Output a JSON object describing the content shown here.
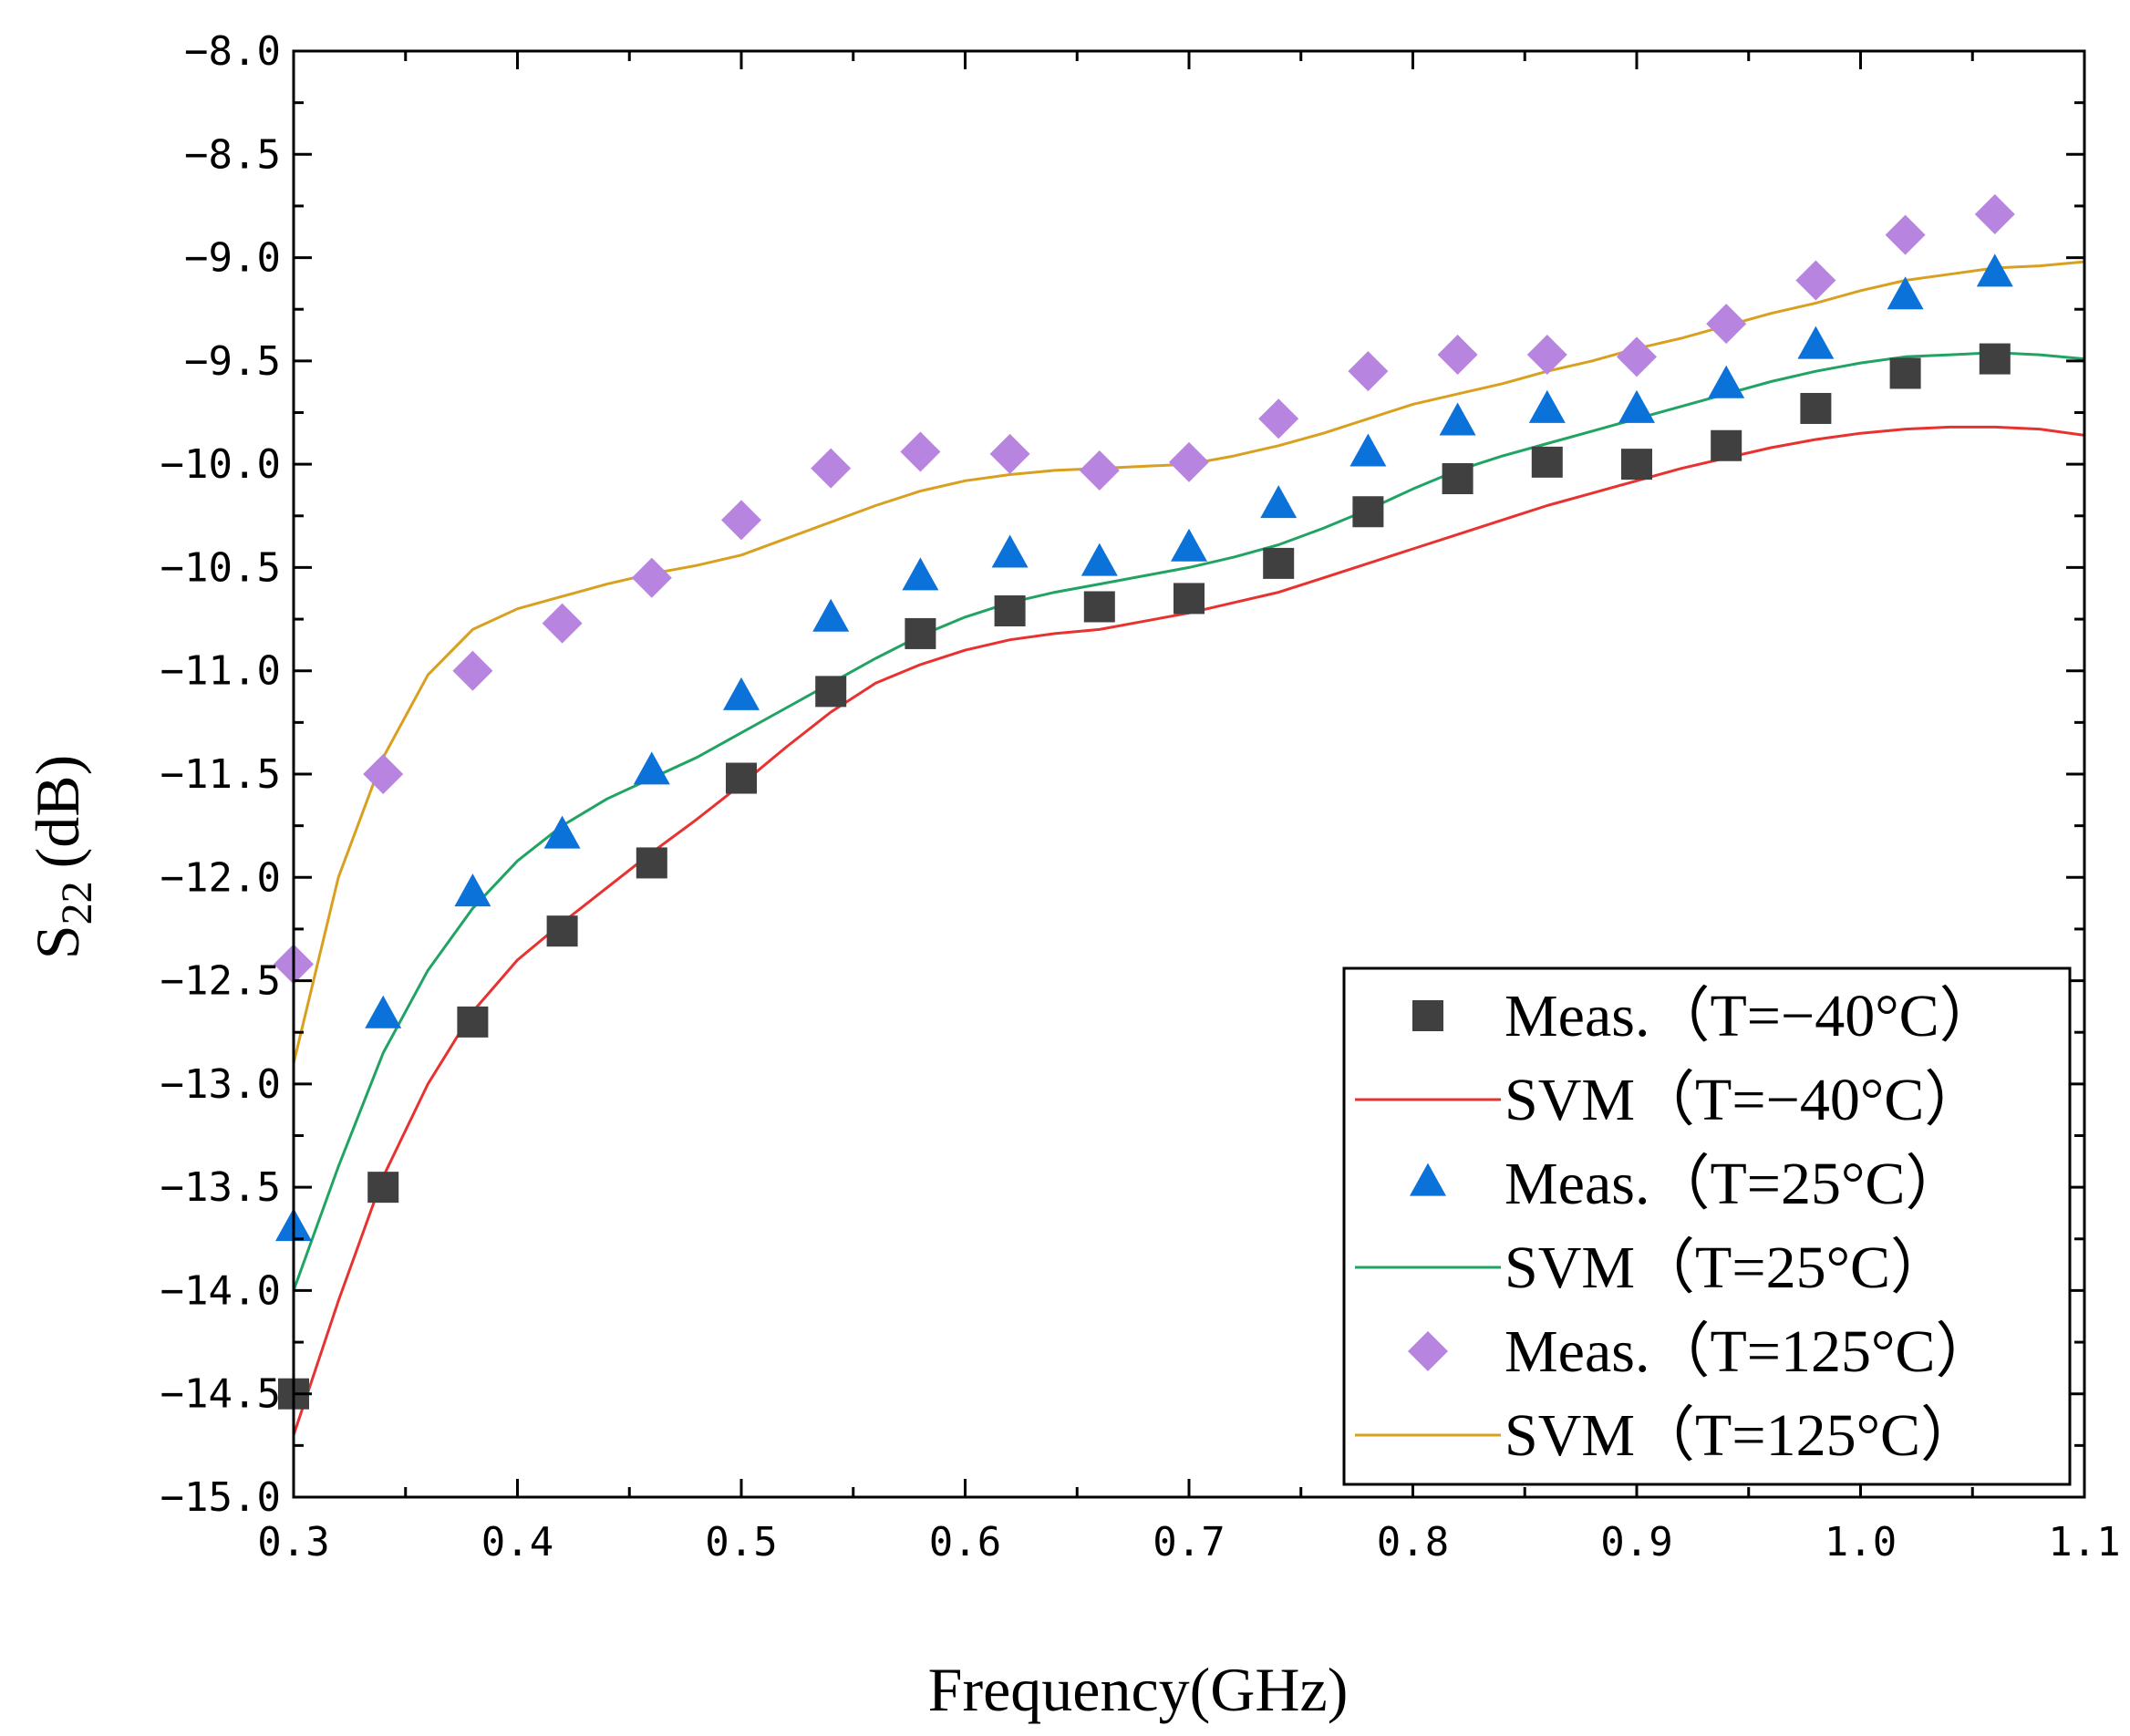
{
  "chart_data": {
    "type": "scatter",
    "title": "",
    "xlabel": "Frequency(GHz)",
    "ylabel": {
      "main": "S",
      "sub": "22",
      "unit": "(dB)"
    },
    "xlim": [
      0.3,
      1.1
    ],
    "ylim": [
      -15.0,
      -8.0
    ],
    "grid": false,
    "legend_position": "bottom-right",
    "x_ticks": [
      {
        "value": 0.3,
        "label": "0.3"
      },
      {
        "value": 0.4,
        "label": "0.4"
      },
      {
        "value": 0.5,
        "label": "0.5"
      },
      {
        "value": 0.6,
        "label": "0.6"
      },
      {
        "value": 0.7,
        "label": "0.7"
      },
      {
        "value": 0.8,
        "label": "0.8"
      },
      {
        "value": 0.9,
        "label": "0.9"
      },
      {
        "value": 1.0,
        "label": "1.0"
      },
      {
        "value": 1.1,
        "label": "1.1"
      }
    ],
    "y_ticks": [
      {
        "value": -8.0,
        "label": "−8.0"
      },
      {
        "value": -8.5,
        "label": "−8.5"
      },
      {
        "value": -9.0,
        "label": "−9.0"
      },
      {
        "value": -9.5,
        "label": "−9.5"
      },
      {
        "value": -10.0,
        "label": "−10.0"
      },
      {
        "value": -10.5,
        "label": "−10.5"
      },
      {
        "value": -11.0,
        "label": "−11.0"
      },
      {
        "value": -11.5,
        "label": "−11.5"
      },
      {
        "value": -12.0,
        "label": "−12.0"
      },
      {
        "value": -12.5,
        "label": "−12.5"
      },
      {
        "value": -13.0,
        "label": "−13.0"
      },
      {
        "value": -13.5,
        "label": "−13.5"
      },
      {
        "value": -14.0,
        "label": "−14.0"
      },
      {
        "value": -14.5,
        "label": "−14.5"
      },
      {
        "value": -15.0,
        "label": "−15.0"
      }
    ],
    "series": [
      {
        "name": "Meas.（T=−40°C）",
        "kind": "markers",
        "marker": "square",
        "color": "#404040",
        "x": [
          0.3,
          0.34,
          0.38,
          0.42,
          0.46,
          0.5,
          0.54,
          0.58,
          0.62,
          0.66,
          0.7,
          0.74,
          0.78,
          0.82,
          0.86,
          0.9,
          0.94,
          0.98,
          1.02,
          1.06
        ],
        "y": [
          -14.5,
          -13.5,
          -12.7,
          -12.26,
          -11.93,
          -11.52,
          -11.1,
          -10.82,
          -10.71,
          -10.69,
          -10.65,
          -10.48,
          -10.23,
          -10.07,
          -9.99,
          -10.0,
          -9.91,
          -9.73,
          -9.56,
          -9.49
        ]
      },
      {
        "name": "SVM（T=−40°C）",
        "kind": "line",
        "color": "#e8322f",
        "x": [
          0.3,
          0.32,
          0.34,
          0.36,
          0.38,
          0.4,
          0.42,
          0.44,
          0.46,
          0.48,
          0.5,
          0.52,
          0.54,
          0.56,
          0.58,
          0.6,
          0.62,
          0.64,
          0.66,
          0.68,
          0.7,
          0.72,
          0.74,
          0.76,
          0.78,
          0.8,
          0.82,
          0.84,
          0.86,
          0.88,
          0.9,
          0.92,
          0.94,
          0.96,
          0.98,
          1.0,
          1.02,
          1.04,
          1.06,
          1.08,
          1.1
        ],
        "y": [
          -14.7,
          -14.05,
          -13.45,
          -13.0,
          -12.65,
          -12.4,
          -12.22,
          -12.05,
          -11.88,
          -11.72,
          -11.55,
          -11.37,
          -11.2,
          -11.06,
          -10.97,
          -10.9,
          -10.85,
          -10.82,
          -10.8,
          -10.76,
          -10.72,
          -10.67,
          -10.62,
          -10.55,
          -10.48,
          -10.41,
          -10.34,
          -10.27,
          -10.2,
          -10.14,
          -10.08,
          -10.02,
          -9.97,
          -9.92,
          -9.88,
          -9.85,
          -9.83,
          -9.82,
          -9.82,
          -9.83,
          -9.86
        ]
      },
      {
        "name": "Meas.（T=25°C）",
        "kind": "markers",
        "marker": "triangle",
        "color": "#0b72d9",
        "x": [
          0.3,
          0.34,
          0.38,
          0.42,
          0.46,
          0.5,
          0.54,
          0.58,
          0.62,
          0.66,
          0.7,
          0.74,
          0.78,
          0.82,
          0.86,
          0.9,
          0.94,
          0.98,
          1.02,
          1.06
        ],
        "y": [
          -13.7,
          -12.67,
          -12.08,
          -11.8,
          -11.49,
          -11.13,
          -10.75,
          -10.55,
          -10.44,
          -10.48,
          -10.41,
          -10.2,
          -9.95,
          -9.8,
          -9.74,
          -9.74,
          -9.62,
          -9.43,
          -9.19,
          -9.08
        ]
      },
      {
        "name": "SVM（T=25°C）",
        "kind": "line",
        "color": "#20a363",
        "x": [
          0.3,
          0.32,
          0.34,
          0.36,
          0.38,
          0.4,
          0.42,
          0.44,
          0.46,
          0.48,
          0.5,
          0.52,
          0.54,
          0.56,
          0.58,
          0.6,
          0.62,
          0.64,
          0.66,
          0.68,
          0.7,
          0.72,
          0.74,
          0.76,
          0.78,
          0.8,
          0.82,
          0.84,
          0.86,
          0.88,
          0.9,
          0.92,
          0.94,
          0.96,
          0.98,
          1.0,
          1.02,
          1.04,
          1.06,
          1.08,
          1.1
        ],
        "y": [
          -14.0,
          -13.4,
          -12.85,
          -12.45,
          -12.15,
          -11.92,
          -11.75,
          -11.62,
          -11.52,
          -11.42,
          -11.3,
          -11.18,
          -11.06,
          -10.94,
          -10.83,
          -10.74,
          -10.67,
          -10.62,
          -10.58,
          -10.54,
          -10.5,
          -10.45,
          -10.39,
          -10.31,
          -10.22,
          -10.12,
          -10.03,
          -9.96,
          -9.9,
          -9.84,
          -9.78,
          -9.72,
          -9.66,
          -9.6,
          -9.55,
          -9.51,
          -9.48,
          -9.47,
          -9.46,
          -9.47,
          -9.49
        ]
      },
      {
        "name": "Meas.（T=125°C）",
        "kind": "markers",
        "marker": "diamond",
        "color": "#b784e0",
        "x": [
          0.3,
          0.34,
          0.38,
          0.42,
          0.46,
          0.5,
          0.54,
          0.58,
          0.62,
          0.66,
          0.7,
          0.74,
          0.78,
          0.82,
          0.86,
          0.9,
          0.94,
          0.98,
          1.02,
          1.06
        ],
        "y": [
          -12.42,
          -11.5,
          -11.0,
          -10.77,
          -10.55,
          -10.27,
          -10.02,
          -9.94,
          -9.95,
          -10.03,
          -9.99,
          -9.78,
          -9.55,
          -9.47,
          -9.47,
          -9.48,
          -9.32,
          -9.11,
          -8.89,
          -8.79
        ]
      },
      {
        "name": "SVM（T=125°C）",
        "kind": "line",
        "color": "#d9a020",
        "x": [
          0.3,
          0.32,
          0.34,
          0.36,
          0.38,
          0.4,
          0.42,
          0.44,
          0.46,
          0.48,
          0.5,
          0.52,
          0.54,
          0.56,
          0.58,
          0.6,
          0.62,
          0.64,
          0.66,
          0.68,
          0.7,
          0.72,
          0.74,
          0.76,
          0.78,
          0.8,
          0.82,
          0.84,
          0.86,
          0.88,
          0.9,
          0.92,
          0.94,
          0.96,
          0.98,
          1.0,
          1.02,
          1.04,
          1.06,
          1.08,
          1.1
        ],
        "y": [
          -12.9,
          -12.0,
          -11.42,
          -11.02,
          -10.8,
          -10.7,
          -10.64,
          -10.58,
          -10.53,
          -10.49,
          -10.44,
          -10.36,
          -10.28,
          -10.2,
          -10.13,
          -10.08,
          -10.05,
          -10.03,
          -10.02,
          -10.01,
          -10.0,
          -9.96,
          -9.91,
          -9.85,
          -9.78,
          -9.71,
          -9.66,
          -9.61,
          -9.55,
          -9.5,
          -9.44,
          -9.39,
          -9.33,
          -9.27,
          -9.22,
          -9.16,
          -9.11,
          -9.08,
          -9.05,
          -9.04,
          -9.02
        ]
      }
    ]
  }
}
